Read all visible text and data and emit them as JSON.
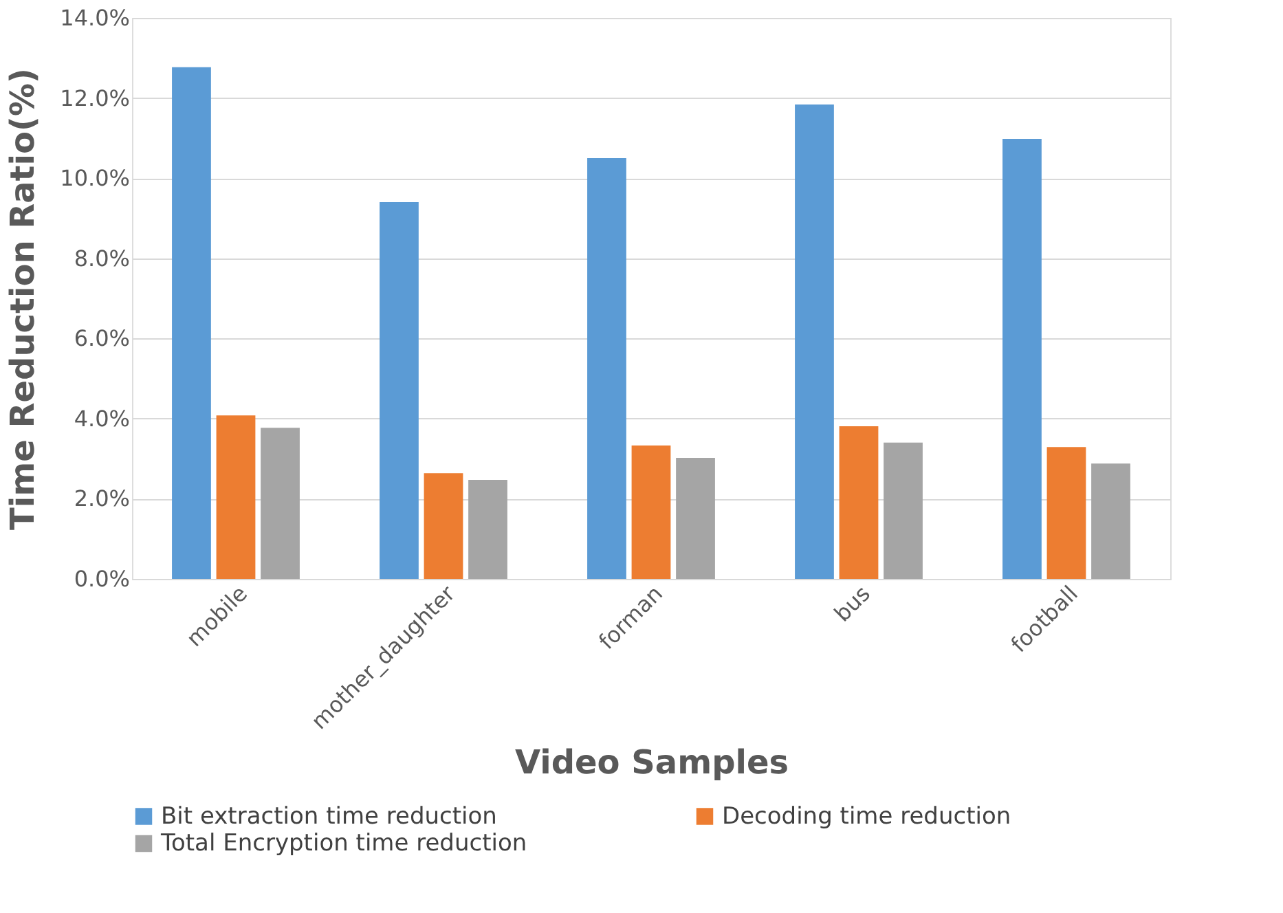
{
  "chart_data": {
    "type": "bar",
    "xlabel": "Video Samples",
    "ylabel": "Time Reduction Ratio(%)",
    "categories": [
      "mobile",
      "mother_daughter",
      "forman",
      "bus",
      "football"
    ],
    "series": [
      {
        "name": "Bit extraction time reduction",
        "color": "#5b9bd5",
        "values": [
          12.77,
          9.4,
          10.5,
          11.84,
          10.98
        ]
      },
      {
        "name": "Decoding time reduction",
        "color": "#ed7d31",
        "values": [
          4.08,
          2.64,
          3.33,
          3.81,
          3.29
        ]
      },
      {
        "name": "Total Encryption time reduction",
        "color": "#a5a5a5",
        "values": [
          3.77,
          2.47,
          3.02,
          3.4,
          2.88
        ]
      }
    ],
    "ylim": [
      0,
      14
    ],
    "yticks": [
      {
        "value": 0,
        "label": "0.0%"
      },
      {
        "value": 2,
        "label": "2.0%"
      },
      {
        "value": 4,
        "label": "4.0%"
      },
      {
        "value": 6,
        "label": "6.0%"
      },
      {
        "value": 8,
        "label": "8.0%"
      },
      {
        "value": 10,
        "label": "10.0%"
      },
      {
        "value": 12,
        "label": "12.0%"
      },
      {
        "value": 14,
        "label": "14.0%"
      }
    ],
    "grid": "y",
    "legend": "bottom"
  }
}
